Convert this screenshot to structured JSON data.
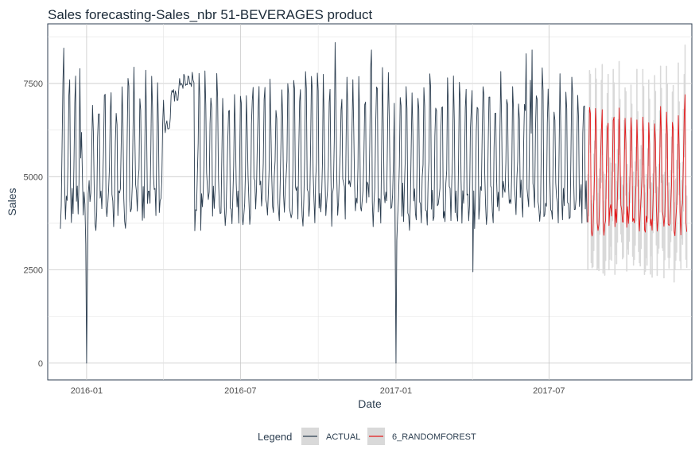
{
  "chart_data": {
    "type": "line",
    "title": "Sales forecasting-Sales_nbr 51-BEVERAGES product",
    "xlabel": "Date",
    "ylabel": "Sales",
    "x_ticks": [
      "2016-01",
      "2016-07",
      "2017-01",
      "2017-07"
    ],
    "y_ticks": [
      0,
      2500,
      5000,
      7500
    ],
    "xlim": [
      "2015-11-16",
      "2017-12-17"
    ],
    "ylim": [
      -450,
      9100
    ],
    "grid": true,
    "legend_position": "bottom",
    "legend_title": "Legend",
    "colors": {
      "actual": "#2c3e50",
      "forecast": "#e31a1c",
      "band": "#d9d9d9"
    },
    "series": [
      {
        "name": "ACTUAL",
        "x_start": "2015-12-01",
        "x_end": "2017-08-15",
        "weekly_pattern": [
          4500,
          4300,
          4200,
          4400,
          5800,
          7300,
          6800
        ],
        "points": [
          [
            "2015-12-05",
            8450
          ],
          [
            "2015-12-12",
            7600
          ],
          [
            "2015-12-19",
            7700
          ],
          [
            "2015-12-24",
            7900
          ],
          [
            "2015-12-25",
            5500
          ],
          [
            "2015-12-31",
            3200
          ],
          [
            "2016-01-01",
            0
          ],
          [
            "2016-01-02",
            2400
          ],
          [
            "2016-04-05",
            6500
          ],
          [
            "2016-04-15",
            7300
          ],
          [
            "2016-04-25",
            7750
          ],
          [
            "2016-05-05",
            7800
          ],
          [
            "2016-05-08",
            3550
          ],
          [
            "2016-05-15",
            3560
          ],
          [
            "2016-10-21",
            8600
          ],
          [
            "2016-12-03",
            8400
          ],
          [
            "2016-12-31",
            3300
          ],
          [
            "2017-01-01",
            0
          ],
          [
            "2017-01-02",
            3300
          ],
          [
            "2017-04-02",
            2450
          ],
          [
            "2017-06-04",
            8300
          ],
          [
            "2017-06-11",
            8400
          ]
        ]
      },
      {
        "name": "6_RANDOMFOREST",
        "x_start": "2017-08-16",
        "x_end": "2017-12-11",
        "weekly_pattern": [
          3900,
          3800,
          3900,
          4100,
          5100,
          6500,
          6100
        ],
        "points": [
          [
            "2017-08-19",
            6700
          ],
          [
            "2017-09-02",
            6800
          ],
          [
            "2017-09-16",
            6600
          ],
          [
            "2017-12-09",
            7200
          ]
        ],
        "band_halfwidth": 1100
      }
    ]
  }
}
